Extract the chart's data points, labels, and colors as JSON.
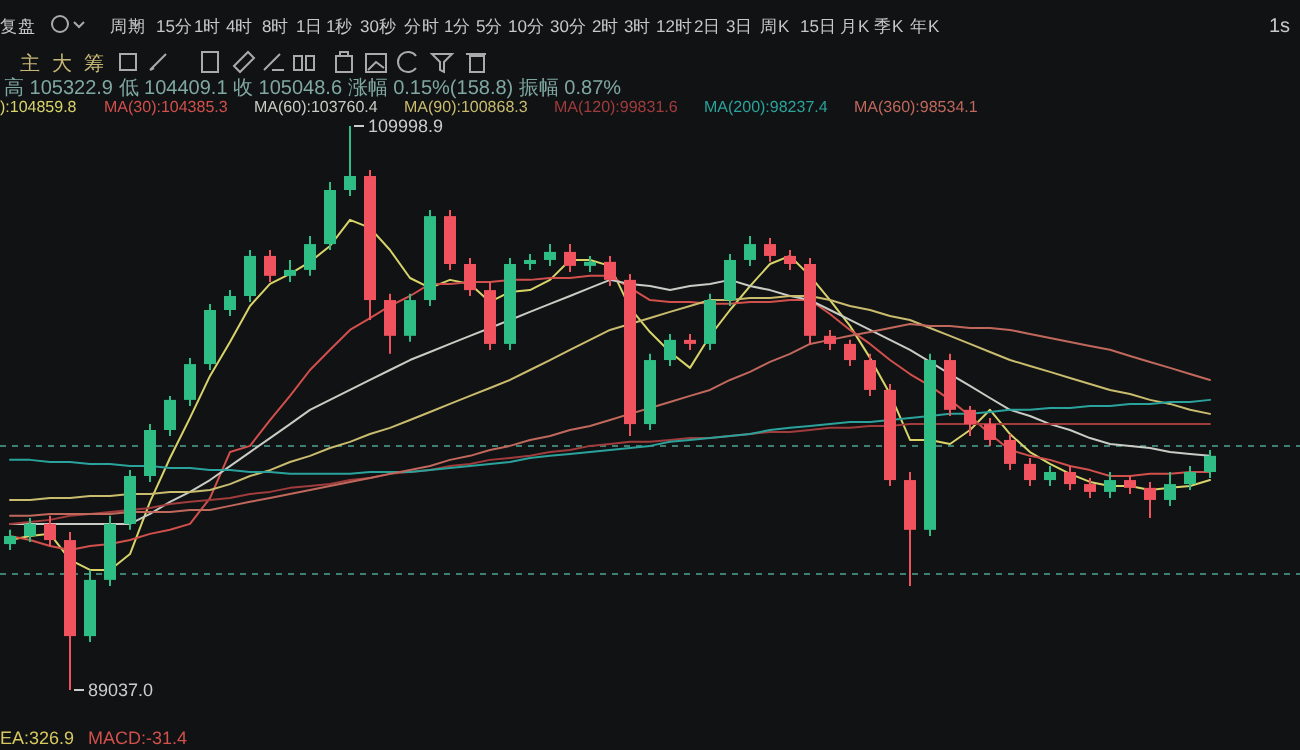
{
  "chart_data": {
    "type": "candlestick",
    "categories": [
      null,
      null,
      null,
      null,
      null,
      null,
      null,
      null,
      null,
      null,
      null,
      null,
      null,
      null,
      null,
      null,
      null,
      null,
      null,
      null,
      null,
      null,
      null,
      null,
      null,
      null,
      null,
      null,
      null,
      null,
      null,
      null,
      null,
      null,
      null,
      null,
      null,
      null,
      null,
      null,
      null,
      null,
      null,
      null,
      null,
      null,
      null,
      null,
      null,
      null,
      null,
      null,
      null,
      null,
      null,
      null,
      null,
      null,
      null,
      null,
      null
    ],
    "ohlc": [
      [
        94460,
        94990,
        94240,
        94760
      ],
      [
        94760,
        95430,
        94540,
        95210
      ],
      [
        95210,
        95510,
        94390,
        94610
      ],
      [
        94610,
        94910,
        89037.0,
        91040
      ],
      [
        91040,
        93500,
        90820,
        93130
      ],
      [
        93130,
        95510,
        92900,
        95210
      ],
      [
        95210,
        97210,
        94990,
        96990
      ],
      [
        96990,
        98920,
        96770,
        98700
      ],
      [
        98700,
        99960,
        98480,
        99820
      ],
      [
        99820,
        101380,
        99590,
        101150
      ],
      [
        101150,
        103380,
        100930,
        103160
      ],
      [
        103160,
        103900,
        102940,
        103680
      ],
      [
        103680,
        105390,
        103460,
        105170
      ],
      [
        105170,
        105390,
        104200,
        104430
      ],
      [
        104430,
        105020,
        104200,
        104650
      ],
      [
        104650,
        105910,
        104430,
        105610
      ],
      [
        105610,
        107920,
        105390,
        107620
      ],
      [
        107620,
        109998.9,
        107400,
        108140
      ],
      [
        108140,
        108360,
        102790,
        103530
      ],
      [
        103530,
        103760,
        101530,
        102200
      ],
      [
        102200,
        103760,
        101980,
        103530
      ],
      [
        103530,
        106880,
        103310,
        106650
      ],
      [
        106650,
        106880,
        104650,
        104870
      ],
      [
        104870,
        105090,
        103680,
        103900
      ],
      [
        103900,
        104200,
        101670,
        101900
      ],
      [
        101900,
        105090,
        101670,
        104870
      ],
      [
        104870,
        105240,
        104650,
        105020
      ],
      [
        105020,
        105610,
        104800,
        105320
      ],
      [
        105320,
        105610,
        104570,
        104800
      ],
      [
        104800,
        105170,
        104570,
        104950
      ],
      [
        104950,
        105170,
        104050,
        104280
      ],
      [
        104280,
        104500,
        98480,
        98920
      ],
      [
        98920,
        101530,
        98700,
        101300
      ],
      [
        101300,
        102270,
        101080,
        102050
      ],
      [
        102050,
        102270,
        101670,
        101900
      ],
      [
        101900,
        103760,
        101670,
        103530
      ],
      [
        103530,
        105240,
        103310,
        105020
      ],
      [
        105020,
        105910,
        104800,
        105610
      ],
      [
        105610,
        105840,
        104950,
        105170
      ],
      [
        105170,
        105390,
        104650,
        104870
      ],
      [
        104870,
        105090,
        101900,
        102200
      ],
      [
        102200,
        102420,
        101670,
        101900
      ],
      [
        101900,
        102050,
        101080,
        101300
      ],
      [
        101300,
        101530,
        99960,
        100190
      ],
      [
        100190,
        100410,
        96620,
        96840
      ],
      [
        96840,
        97140,
        92900,
        94990
      ],
      [
        94990,
        101530,
        94760,
        101300
      ],
      [
        101300,
        101530,
        99220,
        99450
      ],
      [
        99450,
        99590,
        98480,
        98920
      ],
      [
        98920,
        99150,
        98110,
        98330
      ],
      [
        98330,
        98550,
        97210,
        97440
      ],
      [
        97440,
        97660,
        96620,
        96840
      ],
      [
        96840,
        97360,
        96620,
        97140
      ],
      [
        97140,
        97360,
        96470,
        96690
      ],
      [
        96690,
        96920,
        96170,
        96400
      ],
      [
        96400,
        97140,
        96170,
        96840
      ],
      [
        96840,
        96990,
        96320,
        96550
      ],
      [
        96550,
        96770,
        95430,
        96100
      ],
      [
        96100,
        97140,
        95880,
        96690
      ],
      [
        96690,
        97360,
        96470,
        97140
      ],
      [
        97140,
        97960,
        96920,
        97740
      ]
    ],
    "series": [
      {
        "type": "line",
        "name": "):104859.8",
        "color": "#d8d46a",
        "values": [
          94610,
          94760,
          94840,
          93870,
          93500,
          93500,
          94090,
          96030,
          97660,
          99150,
          100710,
          101970,
          103310,
          104130,
          104500,
          104950,
          105540,
          106510,
          106210,
          105390,
          104350,
          103980,
          104280,
          104130,
          103460,
          103830,
          103900,
          104280,
          105020,
          105020,
          104800,
          103240,
          102340,
          101600,
          101010,
          102200,
          103160,
          104050,
          104870,
          105170,
          104430,
          103530,
          102570,
          101380,
          100040,
          98330,
          98330,
          98180,
          98700,
          99450,
          98550,
          97880,
          97440,
          97070,
          96770,
          96620,
          96620,
          96470,
          96550,
          96620,
          96840
        ]
      },
      {
        "type": "line",
        "name": "MA(30):104385.3",
        "color": "#d2504c",
        "values": [
          94760,
          94610,
          94390,
          94240,
          94390,
          94460,
          94610,
          94840,
          94990,
          95210,
          96170,
          97880,
          98110,
          99070,
          99970,
          100930,
          101680,
          102420,
          102860,
          103310,
          103680,
          104130,
          104130,
          104200,
          104200,
          104280,
          104280,
          104350,
          104350,
          104430,
          104430,
          103980,
          103530,
          103460,
          103460,
          103390,
          103390,
          103460,
          103460,
          103530,
          103530,
          103010,
          102420,
          101900,
          101300,
          100780,
          100340,
          99820,
          99220,
          98550,
          97960,
          97740,
          97590,
          97360,
          97210,
          96990,
          96990,
          97070,
          97070,
          97140,
          97140
        ]
      },
      {
        "type": "line",
        "name": "MA(60):103760.4",
        "color": "#c8ccc4",
        "values": [
          95210,
          95210,
          95210,
          95210,
          95210,
          95210,
          95210,
          95580,
          96030,
          96400,
          96840,
          97360,
          97880,
          98400,
          98920,
          99450,
          99820,
          100190,
          100560,
          100930,
          101300,
          101600,
          101900,
          102200,
          102490,
          102790,
          103090,
          103390,
          103680,
          103980,
          104280,
          104130,
          104050,
          103900,
          104050,
          104130,
          104280,
          104050,
          103900,
          103680,
          103530,
          103160,
          102790,
          102420,
          102050,
          101680,
          101230,
          100780,
          100340,
          99890,
          99450,
          99220,
          98920,
          98700,
          98400,
          98180,
          98110,
          98030,
          97880,
          97810,
          97740
        ]
      },
      {
        "type": "line",
        "name": "MA(90):100868.3",
        "color": "#c9bc6e",
        "values": [
          96100,
          96100,
          96170,
          96170,
          96250,
          96250,
          96320,
          96320,
          96400,
          96400,
          96470,
          96690,
          96990,
          97210,
          97510,
          97740,
          98030,
          98260,
          98550,
          98780,
          99070,
          99370,
          99670,
          99970,
          100260,
          100560,
          100930,
          101300,
          101680,
          102050,
          102420,
          102640,
          102860,
          103090,
          103310,
          103530,
          103530,
          103610,
          103610,
          103680,
          103680,
          103530,
          103310,
          103160,
          102940,
          102790,
          102490,
          102200,
          101900,
          101600,
          101300,
          101080,
          100860,
          100630,
          100410,
          100190,
          100040,
          99820,
          99670,
          99450,
          99300
        ]
      },
      {
        "type": "line",
        "name": "MA(120):99831.6",
        "color": "#a03c3c",
        "values": [
          95210,
          95280,
          95360,
          95510,
          95580,
          95650,
          95730,
          95800,
          95950,
          96030,
          96100,
          96170,
          96320,
          96400,
          96550,
          96620,
          96690,
          96840,
          96920,
          97070,
          97140,
          97210,
          97360,
          97440,
          97590,
          97660,
          97740,
          97880,
          97960,
          98110,
          98180,
          98260,
          98260,
          98330,
          98400,
          98400,
          98480,
          98550,
          98630,
          98630,
          98700,
          98780,
          98780,
          98850,
          98850,
          98920,
          98920,
          98920,
          98920,
          98920,
          98920,
          98920,
          98920,
          98920,
          98920,
          98920,
          98920,
          98920,
          98920,
          98920,
          98920
        ]
      },
      {
        "type": "line",
        "name": "MA(200):98237.4",
        "color": "#2aa39c",
        "values": [
          97590,
          97590,
          97510,
          97510,
          97440,
          97440,
          97360,
          97360,
          97290,
          97290,
          97210,
          97210,
          97140,
          97140,
          97070,
          97070,
          97070,
          97070,
          97140,
          97140,
          97140,
          97210,
          97290,
          97360,
          97440,
          97510,
          97660,
          97740,
          97810,
          97880,
          97960,
          98030,
          98110,
          98260,
          98330,
          98400,
          98480,
          98550,
          98700,
          98780,
          98850,
          98920,
          99000,
          99000,
          99070,
          99150,
          99220,
          99300,
          99300,
          99370,
          99450,
          99450,
          99520,
          99520,
          99590,
          99590,
          99670,
          99670,
          99740,
          99740,
          99820
        ]
      },
      {
        "type": "line",
        "name": "MA(360):98534.1",
        "color": "#c0685c",
        "values": [
          95510,
          95510,
          95580,
          95580,
          95580,
          95580,
          95650,
          95650,
          95650,
          95730,
          95730,
          95880,
          96030,
          96170,
          96320,
          96470,
          96620,
          96770,
          96920,
          97070,
          97210,
          97360,
          97590,
          97740,
          97960,
          98110,
          98330,
          98480,
          98700,
          98850,
          99070,
          99300,
          99520,
          99740,
          99970,
          100190,
          100560,
          100860,
          101230,
          101530,
          101900,
          102050,
          102200,
          102340,
          102490,
          102640,
          102570,
          102570,
          102490,
          102490,
          102420,
          102270,
          102120,
          101970,
          101820,
          101680,
          101450,
          101230,
          101010,
          100780,
          100560
        ]
      }
    ],
    "legend": "top left",
    "ref_lines": [
      {
        "axis": "y",
        "value": 98110,
        "color": "#3f7f74",
        "line_style": "dashed"
      },
      {
        "axis": "y",
        "value": 93350,
        "color": "#3f7f74",
        "line_style": "dashed"
      }
    ],
    "annotations": [
      "109998.9",
      "89037.0",
      "高 105322.9 低 104409.1 收 105048.6 涨幅 0.15%(158.8) 振幅 0.87%",
      "EA:326.9",
      "MACD:-31.4",
      "主",
      "大",
      "筹",
      "复盘",
      "周期",
      "15分",
      "1时",
      "4时",
      "8时",
      "1日",
      "1秒",
      "30秒",
      "分时",
      "1分",
      "5分",
      "10分",
      "30分",
      "2时",
      "3时",
      "12时",
      "2日",
      "3日",
      "周K",
      "15日",
      "月K",
      "季K",
      "年K",
      "1s"
    ]
  }
}
